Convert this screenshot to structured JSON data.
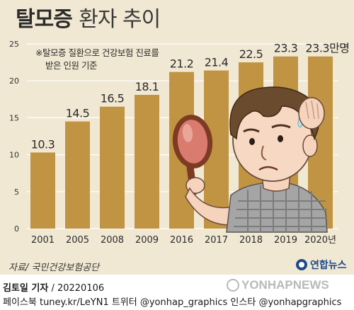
{
  "title_main": "탈모증",
  "title_rest": "환자 추이",
  "note_lines": [
    "※탈모증 질환으로 건강보험 진료를",
    "받은 인원 기준"
  ],
  "source": "자료/ 국민건강보험공단",
  "brand": "연합뉴스",
  "footer": {
    "reporter": "김토일 기자",
    "date": " / 20220106",
    "social": "페이스북 tuney.kr/LeYN1 트위터 @yonhap_graphics  인스타 @yonhapgraphics"
  },
  "watermark": "YONHAPNEWS",
  "colors": {
    "panel_bg": "#f1e8d3",
    "bar": "#c09443",
    "gridline": "#ffffff",
    "text": "#2b2b2b"
  },
  "chart_data": {
    "type": "bar",
    "categories": [
      "2001",
      "2005",
      "2008",
      "2009",
      "2016",
      "2017",
      "2018",
      "2019",
      "2020년"
    ],
    "values": [
      10.3,
      14.5,
      16.5,
      18.1,
      21.2,
      21.4,
      22.5,
      23.3,
      23.3
    ],
    "value_labels": [
      "10.3",
      "14.5",
      "16.5",
      "18.1",
      "21.2",
      "21.4",
      "22.5",
      "23.3",
      "23.3만명"
    ],
    "y_ticks": [
      "0",
      "5",
      "10",
      "15",
      "20",
      "25"
    ],
    "ylim": [
      0,
      25
    ],
    "grid": true,
    "unit": "만명"
  }
}
